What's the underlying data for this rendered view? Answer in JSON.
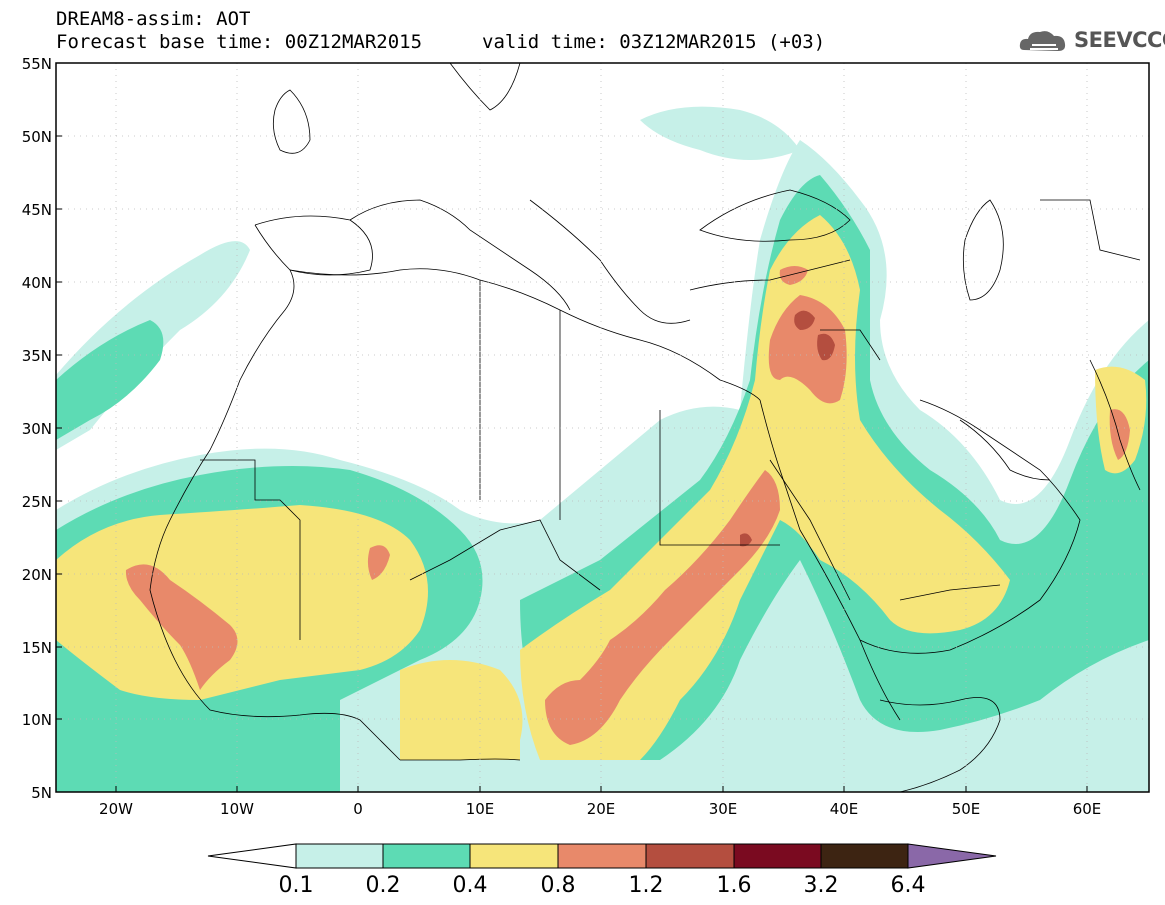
{
  "header": {
    "line1": "DREAM8-assim: AOT",
    "line2": "Forecast base time: 00Z12MAR2015",
    "valid": "valid time: 03Z12MAR2015 (+03)",
    "logo_text": "SEEVCCC"
  },
  "axes": {
    "lat_labels": [
      "55N",
      "50N",
      "45N",
      "40N",
      "35N",
      "30N",
      "25N",
      "20N",
      "15N",
      "10N",
      "5N"
    ],
    "lon_labels": [
      "20W",
      "10W",
      "0",
      "10E",
      "20E",
      "30E",
      "40E",
      "50E",
      "60E"
    ]
  },
  "legend": {
    "ticks": [
      "0.1",
      "0.2",
      "0.4",
      "0.8",
      "1.2",
      "1.6",
      "3.2",
      "6.4"
    ],
    "colors": [
      "#ffffff",
      "#c6f0e8",
      "#5ddbb4",
      "#f6e57a",
      "#e8896a",
      "#b44e3f",
      "#7a0a20",
      "#3d2412",
      "#8a68a8"
    ]
  },
  "colors": {
    "c1": "#c6f0e8",
    "c2": "#5ddbb4",
    "c3": "#f6e57a",
    "c4": "#e8896a",
    "c5": "#b44e3f"
  }
}
